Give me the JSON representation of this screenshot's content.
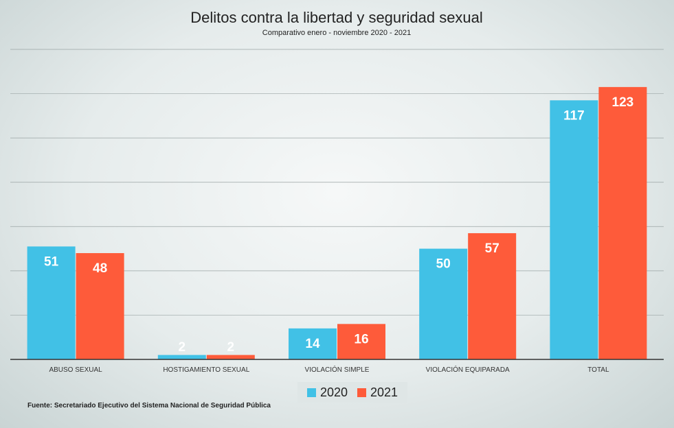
{
  "chart_data": {
    "type": "bar",
    "title": "Delitos contra la libertad y seguridad sexual",
    "subtitle": "Comparativo enero - noviembre 2020 - 2021",
    "categories": [
      "ABUSO SEXUAL",
      "HOSTIGAMIENTO SEXUAL",
      "VIOLACIÓN SIMPLE",
      "VIOLACIÓN EQUIPARADA",
      "TOTAL"
    ],
    "series": [
      {
        "name": "2020",
        "color": "#41c1e6",
        "values": [
          51,
          2,
          14,
          50,
          117
        ]
      },
      {
        "name": "2021",
        "color": "#fe5b3a",
        "values": [
          48,
          2,
          16,
          57,
          123
        ]
      }
    ],
    "ylim": [
      0,
      140
    ],
    "grid": true,
    "legend_position": "bottom",
    "show_y_ticks": false
  },
  "source": "Fuente: Secretariado Ejecutivo del Sistema Nacional de Seguridad Pública"
}
